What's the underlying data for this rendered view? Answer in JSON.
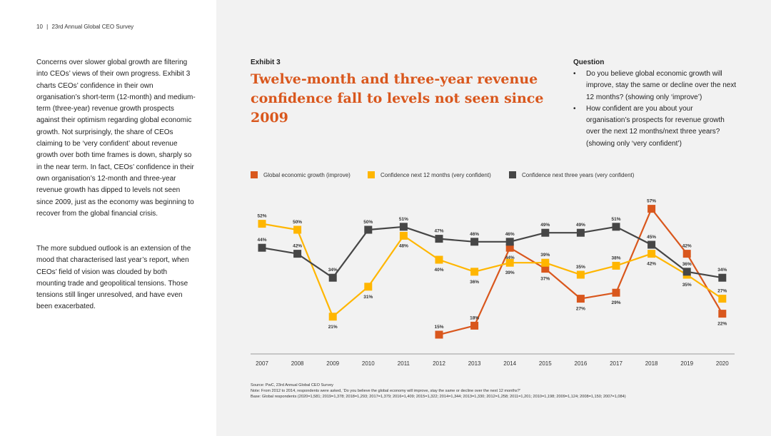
{
  "header": {
    "page_number": "10",
    "separator": "|",
    "doc_title": "23rd Annual Global CEO Survey"
  },
  "body": {
    "paragraph_1": "Concerns over slower global growth are filtering into CEOs’ views of their own progress. Exhibit 3 charts CEOs’ confidence in their own organisation’s short-term (12-month) and medium-term (three-year) revenue growth prospects against their optimism regarding global economic growth. Not surprisingly, the share of CEOs claiming to be ‘very confident’ about revenue growth over both time frames is down, sharply so in the near term. In fact, CEOs’ confidence in their own organisation’s 12-month and three-year revenue growth has dipped to levels not seen since 2009, just as the economy was beginning to recover from the global financial crisis.",
    "paragraph_2": "The more subdued outlook is an extension of the mood that characterised last year’s report, when CEOs’ field of vision was clouded by both mounting trade and geopolitical tensions. Those tensions still linger unresolved, and have even been exacerbated."
  },
  "exhibit": {
    "label": "Exhibit 3",
    "title": "Twelve-month and three-year revenue confidence fall to levels not seen since 2009"
  },
  "question": {
    "heading": "Question",
    "bullet": "•",
    "items": [
      "Do you believe global economic growth will improve, stay the same or decline over the next 12 months? (showing only ‘improve’)",
      "How confident are you about your organisation’s prospects for revenue growth over the next 12 months/next three years? (showing only ‘very confident’)"
    ]
  },
  "source": {
    "line_1": "Source: PwC, 23rd Annual Global CEO Survey",
    "line_2": "Note: From 2012 to 2014, respondents were asked, ‘Do you believe the global economy will improve, stay the same or decline over the next 12 months?’",
    "line_3": "Base: Global respondents (2020=1,581; 2019=1,378; 2018=1,293; 2017=1,379; 2016=1,409; 2015=1,322; 2014=1,344; 2013=1,330; 2012=1,258; 2011=1,201; 2010=1,198; 2009=1,124; 2008=1,150; 2007=1,084)"
  },
  "chart_data": {
    "type": "line",
    "x": [
      "2007",
      "2008",
      "2009",
      "2010",
      "2011",
      "2012",
      "2013",
      "2014",
      "2015",
      "2016",
      "2017",
      "2018",
      "2019",
      "2020"
    ],
    "ylim": [
      10,
      60
    ],
    "grid": false,
    "legend_position": "top-left",
    "series": [
      {
        "name": "Global economic growth (improve)",
        "color": "#d9571d",
        "values": [
          null,
          null,
          null,
          null,
          null,
          15,
          18,
          44,
          37,
          27,
          29,
          57,
          42,
          22
        ],
        "labels": [
          "",
          "",
          "",
          "",
          "",
          "15%",
          "18%",
          "44%",
          "37%",
          "27%",
          "29%",
          "57%",
          "42%",
          "22%"
        ]
      },
      {
        "name": "Confidence next 12 months (very confident)",
        "color": "#ffb600",
        "values": [
          52,
          50,
          21,
          31,
          48,
          40,
          36,
          39,
          39,
          35,
          38,
          42,
          35,
          27
        ],
        "labels": [
          "52%",
          "50%",
          "21%",
          "31%",
          "48%",
          "40%",
          "36%",
          "39%",
          "39%",
          "35%",
          "38%",
          "42%",
          "35%",
          "27%"
        ]
      },
      {
        "name": "Confidence next three years (very confident)",
        "color": "#464646",
        "values": [
          44,
          42,
          34,
          50,
          51,
          47,
          46,
          46,
          49,
          49,
          51,
          45,
          36,
          34
        ],
        "labels": [
          "44%",
          "42%",
          "34%",
          "50%",
          "51%",
          "47%",
          "46%",
          "46%",
          "49%",
          "49%",
          "51%",
          "45%",
          "36%",
          "34%"
        ]
      }
    ]
  }
}
